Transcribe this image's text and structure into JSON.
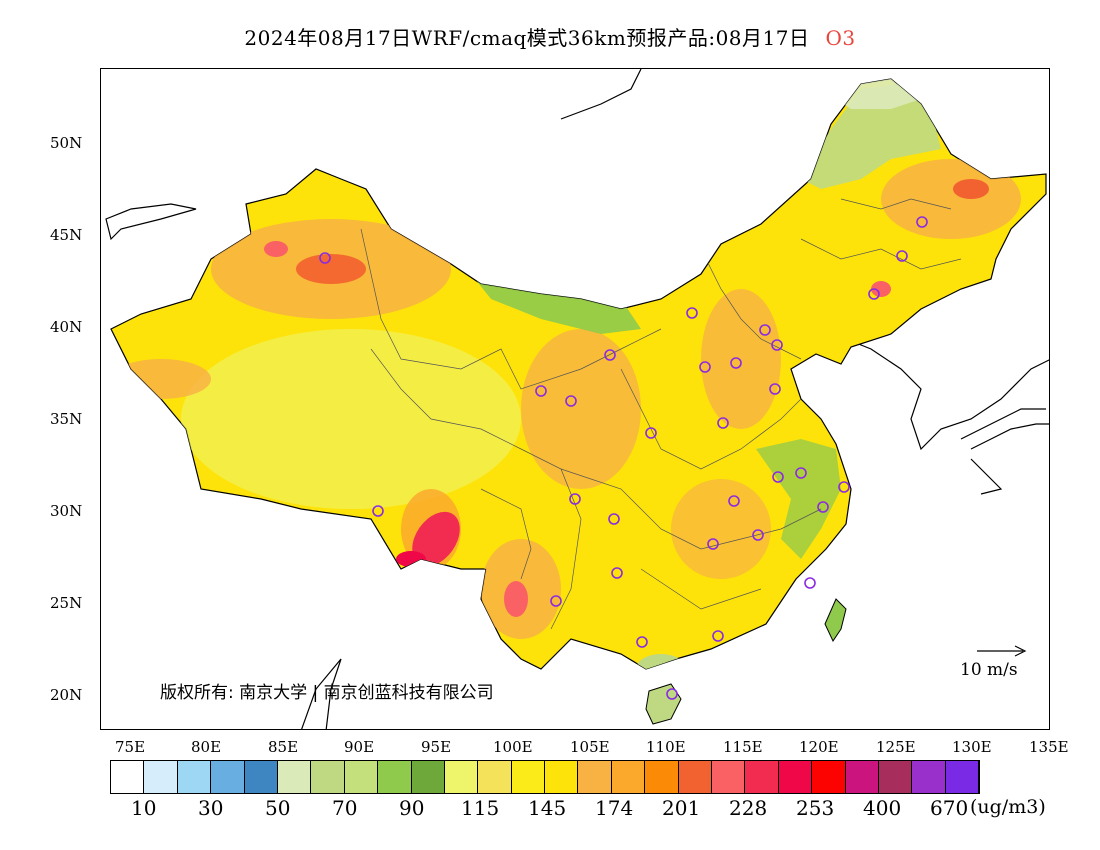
{
  "header": {
    "title": "2024年08月17日WRF/cmaq模式36km预报产品:08月17日",
    "pollutant": "O3",
    "pollutant_color": "#e8453c"
  },
  "map": {
    "lat_labels": [
      "50N",
      "45N",
      "40N",
      "35N",
      "30N",
      "25N",
      "20N"
    ],
    "lon_labels": [
      "75E",
      "80E",
      "85E",
      "90E",
      "95E",
      "100E",
      "105E",
      "110E",
      "115E",
      "120E",
      "125E",
      "130E",
      "135E"
    ],
    "copyright": "版权所有: 南京大学 | 南京创蓝科技有限公司",
    "wind_legend": "10 m/s"
  },
  "colorbar": {
    "colors": [
      "#ffffff",
      "#d6eefb",
      "#9dd7f3",
      "#68aee0",
      "#3d86c2",
      "#dbeab9",
      "#bfd983",
      "#c3e07c",
      "#8fca4d",
      "#6fa83a",
      "#eef56a",
      "#f4e35a",
      "#fbec19",
      "#fde30a",
      "#f8b243",
      "#fba92c",
      "#fb8a07",
      "#f26130",
      "#fa6164",
      "#f22c51",
      "#ef0748",
      "#fc0302",
      "#cb147d",
      "#a62d5c",
      "#9a30cb",
      "#7a2ae4"
    ],
    "labels": [
      "10",
      "30",
      "50",
      "70",
      "90",
      "115",
      "145",
      "174",
      "201",
      "228",
      "253",
      "400",
      "670"
    ],
    "unit": "(ug/m3)"
  }
}
